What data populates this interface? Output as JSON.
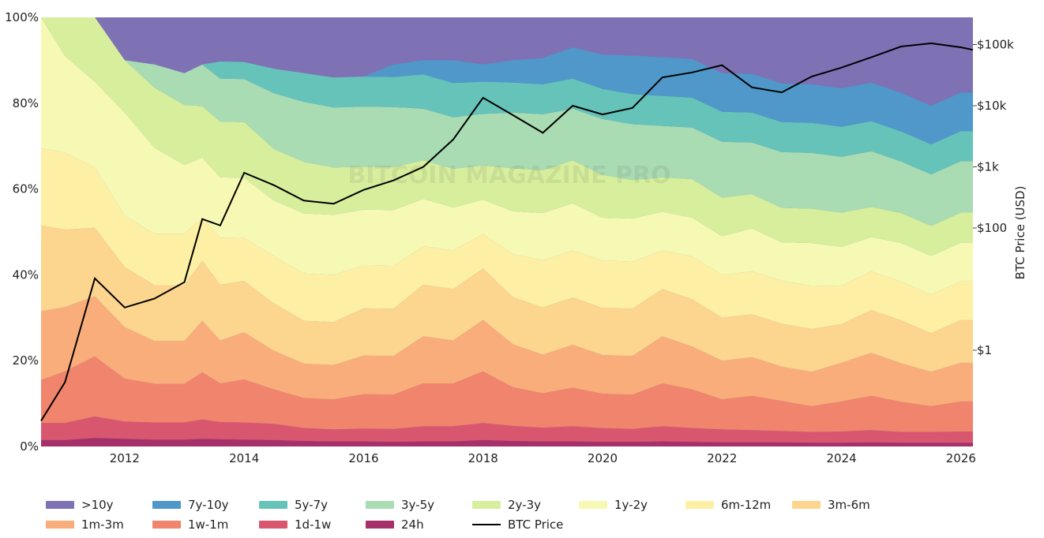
{
  "chart_data": {
    "type": "area",
    "stacking": "percent",
    "x_ticks": [
      "2012",
      "2014",
      "2016",
      "2018",
      "2020",
      "2022",
      "2024",
      "2026"
    ],
    "x_range": [
      2010.6,
      2026.2
    ],
    "y_left_ticks": [
      "0%",
      "20%",
      "40%",
      "60%",
      "80%",
      "100%"
    ],
    "ylim": [
      0,
      100
    ],
    "y_right_label": "BTC Price (USD)",
    "y_right_ticks": [
      "$1",
      "$100",
      "$1k",
      "$10k",
      "$100k"
    ],
    "y_right_scale": "log",
    "watermark": "BITCOIN MAGAZINE PRO",
    "band_order_bottom_to_top": [
      "24h",
      "1d-1w",
      "1w-1m",
      "1m-3m",
      "3m-6m",
      "6m-12m",
      "1y-2y",
      "2y-3y",
      "3y-5y",
      "5y-7y",
      "7y-10y",
      ">10y"
    ],
    "x": [
      2010.6,
      2011.0,
      2011.5,
      2012.0,
      2012.5,
      2013.0,
      2013.3,
      2013.6,
      2014.0,
      2014.5,
      2015.0,
      2015.5,
      2016.0,
      2016.5,
      2017.0,
      2017.5,
      2018.0,
      2018.5,
      2019.0,
      2019.5,
      2020.0,
      2020.5,
      2021.0,
      2021.5,
      2022.0,
      2022.5,
      2023.0,
      2023.5,
      2024.0,
      2024.5,
      2025.0,
      2025.5,
      2026.0,
      2026.2
    ],
    "series": [
      {
        "name": "24h",
        "color": "#a6316a",
        "values": [
          1.5,
          1.5,
          2,
          1.8,
          1.6,
          1.6,
          1.8,
          1.7,
          1.6,
          1.5,
          1.3,
          1.2,
          1.2,
          1.1,
          1.2,
          1.2,
          1.5,
          1.3,
          1.2,
          1.2,
          1.1,
          1.1,
          1.2,
          1.1,
          1,
          1,
          1,
          0.9,
          0.9,
          1,
          0.9,
          0.9,
          0.9,
          0.9
        ]
      },
      {
        "name": "1d-1w",
        "color": "#d9566f",
        "values": [
          4,
          4,
          5,
          4,
          4,
          4,
          4.5,
          4,
          4,
          3.8,
          3,
          2.8,
          3,
          3,
          3.5,
          3.5,
          4,
          3.5,
          3.2,
          3.5,
          3.2,
          3,
          3.5,
          3.2,
          3,
          2.8,
          2.6,
          2.5,
          2.6,
          2.8,
          2.5,
          2.5,
          2.6,
          2.6
        ]
      },
      {
        "name": "1w-1m",
        "color": "#f0846c",
        "values": [
          10,
          12,
          14,
          10,
          9,
          9,
          11,
          9,
          10,
          8,
          7,
          7,
          8,
          8,
          10,
          10,
          12,
          9,
          8,
          9,
          8,
          8,
          10,
          9,
          7,
          8,
          7,
          6,
          7,
          8,
          7,
          6,
          7,
          7
        ]
      },
      {
        "name": "1m-3m",
        "color": "#f8ad7b",
        "values": [
          16,
          15,
          14,
          12,
          10,
          10,
          12,
          10,
          11,
          9,
          8,
          8,
          9,
          9,
          11,
          10,
          12,
          10,
          9,
          10,
          9,
          9,
          11,
          10,
          9,
          9,
          8,
          8,
          9,
          10,
          9,
          8,
          9,
          9
        ]
      },
      {
        "name": "3m-6m",
        "color": "#fcd58e",
        "values": [
          20,
          18,
          16,
          14,
          13,
          13,
          14,
          13,
          12,
          11,
          10,
          10,
          11,
          11,
          12,
          12,
          12,
          11,
          11,
          11,
          11,
          11,
          11,
          11,
          10,
          10,
          10,
          10,
          9,
          10,
          10,
          9,
          10,
          10
        ]
      },
      {
        "name": "6m-12m",
        "color": "#fdf0a5",
        "values": [
          18,
          18,
          14,
          12,
          12,
          12,
          10,
          11,
          10,
          11,
          11,
          11,
          10,
          10,
          9,
          9,
          8,
          10,
          11,
          11,
          11,
          11,
          9,
          10,
          10,
          10,
          10,
          10,
          9,
          9,
          9,
          9,
          9,
          9
        ]
      },
      {
        "name": "1y-2y",
        "color": "#f6f9b4",
        "values": [
          30.5,
          22.5,
          20,
          24,
          20,
          16,
          14,
          14,
          14,
          13,
          14,
          14,
          13,
          13,
          11,
          10,
          8,
          10,
          11,
          11,
          10,
          10,
          9,
          9,
          9,
          10,
          9,
          10,
          9,
          8,
          9,
          9,
          9,
          9
        ]
      },
      {
        "name": "2y-3y",
        "color": "#d7ef9d",
        "values": [
          0,
          9,
          15,
          12.2,
          14,
          14,
          12,
          13,
          13,
          12,
          12,
          11,
          10,
          10,
          9,
          9,
          8,
          10,
          10,
          10,
          10,
          9,
          8,
          9,
          9,
          8,
          8,
          8,
          8,
          7,
          7,
          7,
          7,
          7
        ]
      },
      {
        "name": "3y-5y",
        "color": "#a9dcb2",
        "values": [
          0,
          0,
          0,
          0,
          5.4,
          7.4,
          9.7,
          10,
          10,
          13,
          14,
          14,
          14,
          14,
          12,
          12,
          12,
          13,
          13,
          12,
          13,
          13,
          12,
          12,
          13,
          12,
          13,
          13,
          13,
          13,
          12,
          12,
          12,
          12
        ]
      },
      {
        "name": "5y-7y",
        "color": "#66c3ba",
        "values": [
          0,
          0,
          0,
          0,
          0,
          0,
          0,
          4,
          4,
          5.7,
          6.7,
          7,
          7,
          7,
          8,
          8,
          7.5,
          7,
          7,
          7,
          7,
          7,
          7,
          7,
          7,
          7,
          7,
          7,
          7,
          7,
          7,
          7,
          7,
          7
        ]
      },
      {
        "name": "7y-10y",
        "color": "#4f98c9",
        "values": [
          0,
          0,
          0,
          0,
          0,
          0,
          0,
          0,
          0,
          0,
          0,
          0,
          0,
          2.9,
          3.3,
          5.3,
          4,
          5.2,
          6.1,
          7.3,
          8,
          9,
          9,
          9,
          9,
          9,
          9,
          9,
          9,
          9,
          9,
          9,
          9,
          9
        ]
      },
      {
        "name": ">10y",
        "color": "#7e72b5",
        "values": [
          0,
          0,
          0,
          0,
          0,
          0,
          0,
          0,
          0,
          0,
          0,
          0,
          0,
          0,
          0,
          0,
          0,
          0,
          0,
          0,
          0,
          0.9,
          1.6,
          1.5,
          2,
          2,
          2.4,
          3,
          3.3,
          3.4,
          4.6,
          6.4,
          7.9,
          8.5
        ]
      },
      {
        "name": "BTC Price",
        "color": "#000000",
        "axis": "right",
        "values": [
          0.07,
          0.3,
          15,
          5,
          7,
          13,
          140,
          110,
          800,
          500,
          280,
          250,
          420,
          600,
          1000,
          2800,
          13500,
          7000,
          3600,
          10000,
          7200,
          9200,
          29000,
          35000,
          46000,
          20000,
          16500,
          30000,
          42000,
          62000,
          93000,
          105000,
          90000,
          82000
        ]
      }
    ]
  }
}
